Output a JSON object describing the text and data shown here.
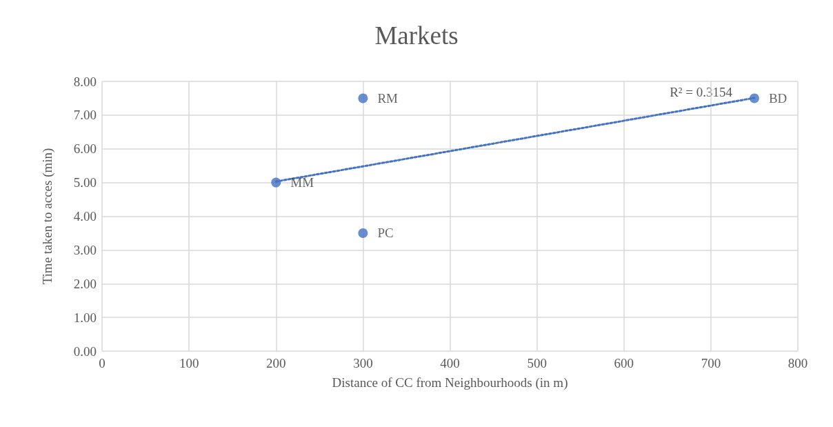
{
  "chart_data": {
    "type": "scatter",
    "title": "Markets",
    "xlabel": "Distance of CC from Neighbourhoods (in m)",
    "ylabel": "Time taken to acces (min)",
    "series": [
      {
        "color": "#4472c4",
        "marker": "circle",
        "x": [
          200,
          300,
          300,
          750
        ],
        "values": [
          5,
          7.5,
          3.5,
          7.5
        ],
        "value_labels": [
          "MM",
          "RM",
          "PC",
          "BD"
        ]
      },
      {
        "type": "line",
        "color": "#4472c4",
        "marker": "none",
        "line_style": "dotted",
        "x": [
          200,
          750
        ],
        "values": [
          5.03,
          7.51
        ]
      }
    ],
    "annotations": [
      "R² = 0.3154"
    ],
    "xlim": [
      0,
      800
    ],
    "xticks": [
      0,
      100,
      200,
      300,
      400,
      500,
      600,
      700,
      800
    ],
    "ylim": [
      0,
      8
    ],
    "yticks": [
      {
        "value": 0,
        "label": "0.00"
      },
      {
        "value": 1,
        "label": "1.00"
      },
      {
        "value": 2,
        "label": "2.00"
      },
      {
        "value": 3,
        "label": "3.00"
      },
      {
        "value": 4,
        "label": "4.00"
      },
      {
        "value": 5,
        "label": "5.00"
      },
      {
        "value": 6,
        "label": "6.00"
      },
      {
        "value": 7,
        "label": "7.00"
      },
      {
        "value": 8,
        "label": "8.00"
      }
    ],
    "grid": true
  }
}
